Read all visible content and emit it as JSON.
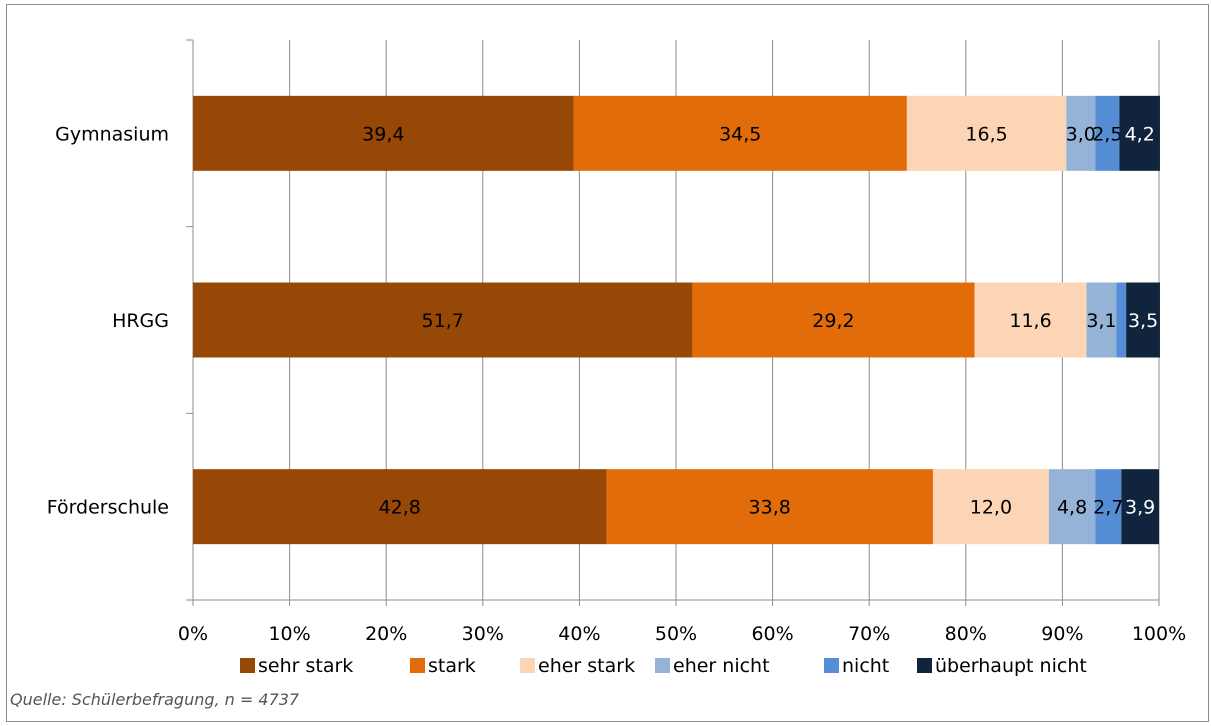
{
  "source_note": "Quelle: Schülerbefragung, n = 4737",
  "chart_data": {
    "type": "bar",
    "orientation": "horizontal",
    "stacked": "percent",
    "title": "",
    "xlabel": "",
    "ylabel": "",
    "xlim": [
      0,
      100
    ],
    "x_ticks": [
      "0%",
      "10%",
      "20%",
      "30%",
      "40%",
      "50%",
      "60%",
      "70%",
      "80%",
      "90%",
      "100%"
    ],
    "grid": "vertical",
    "legend": "bottom",
    "categories": [
      "Gymnasium",
      "HRGG",
      "Förderschule"
    ],
    "series": [
      {
        "name": "sehr stark",
        "color": "#974706",
        "values": [
          39.4,
          51.7,
          42.8
        ],
        "labels": [
          "39,4",
          "51,7",
          "42,8"
        ]
      },
      {
        "name": "stark",
        "color": "#e36c0a",
        "values": [
          34.5,
          29.2,
          33.8
        ],
        "labels": [
          "34,5",
          "29,2",
          "33,8"
        ]
      },
      {
        "name": "eher stark",
        "color": "#fbd5b5",
        "values": [
          16.5,
          11.6,
          12.0
        ],
        "labels": [
          "16,5",
          "11,6",
          "12,0"
        ]
      },
      {
        "name": "eher nicht",
        "color": "#95b3d7",
        "values": [
          3.0,
          3.1,
          4.8
        ],
        "labels": [
          "3,0",
          "3,1",
          "4,8"
        ]
      },
      {
        "name": "nicht",
        "color": "#558ed5",
        "values": [
          2.5,
          1.0,
          2.7
        ],
        "labels": [
          "2,5",
          "",
          "2,7"
        ]
      },
      {
        "name": "überhaupt nicht",
        "color": "#10243e",
        "values": [
          4.2,
          3.5,
          3.9
        ],
        "labels": [
          "4,2",
          "3,5",
          "3,9"
        ]
      }
    ],
    "label_colors": [
      "#000000",
      "#000000",
      "#000000",
      "#000000",
      "#000000",
      "#ffffff"
    ]
  }
}
